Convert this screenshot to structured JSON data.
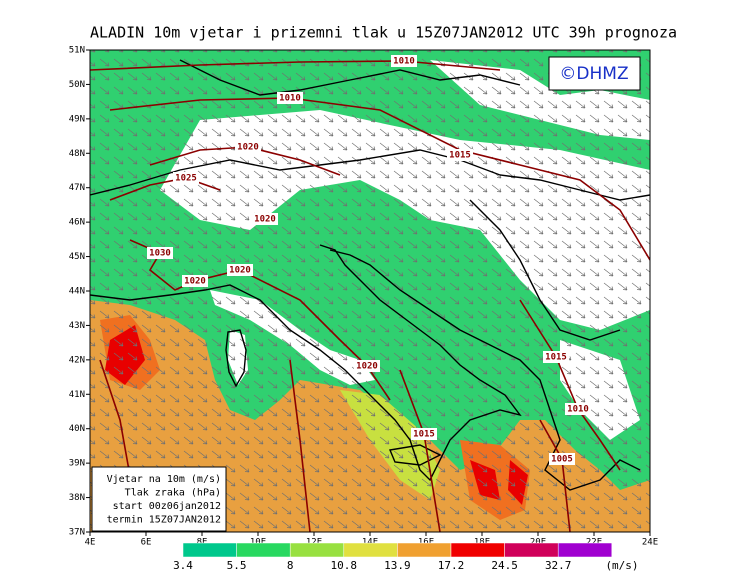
{
  "title": "ALADIN 10m vjetar i prizemni tlak u 15Z07JAN2012 UTC 39h prognoza",
  "logo": "©DHMZ",
  "lat_ticks": [
    "37N",
    "38N",
    "39N",
    "40N",
    "41N",
    "42N",
    "43N",
    "44N",
    "45N",
    "46N",
    "47N",
    "48N",
    "49N",
    "50N",
    "51N"
  ],
  "lon_ticks": [
    "4E",
    "6E",
    "8E",
    "10E",
    "12E",
    "14E",
    "16E",
    "18E",
    "20E",
    "22E",
    "24E"
  ],
  "isobar_labels": [
    "1010",
    "1010",
    "1020",
    "1015",
    "1025",
    "1020",
    "1030",
    "1020",
    "1020",
    "1020",
    "1015",
    "1010",
    "1015",
    "1005"
  ],
  "info_box": [
    "Vjetar na 10m (m/s)",
    "Tlak zraka (hPa)",
    "start 00z06jan2012",
    "termin 15Z07JAN2012"
  ],
  "colorbar": {
    "labels": [
      3.4,
      5.5,
      8,
      10.8,
      13.9,
      17.2,
      24.5,
      32.7
    ],
    "unit": "(m/s)",
    "colors": [
      "#00c88c",
      "#28d860",
      "#98e040",
      "#e0e040",
      "#f0a030",
      "#f00000",
      "#d0005a",
      "#a000d0"
    ]
  }
}
